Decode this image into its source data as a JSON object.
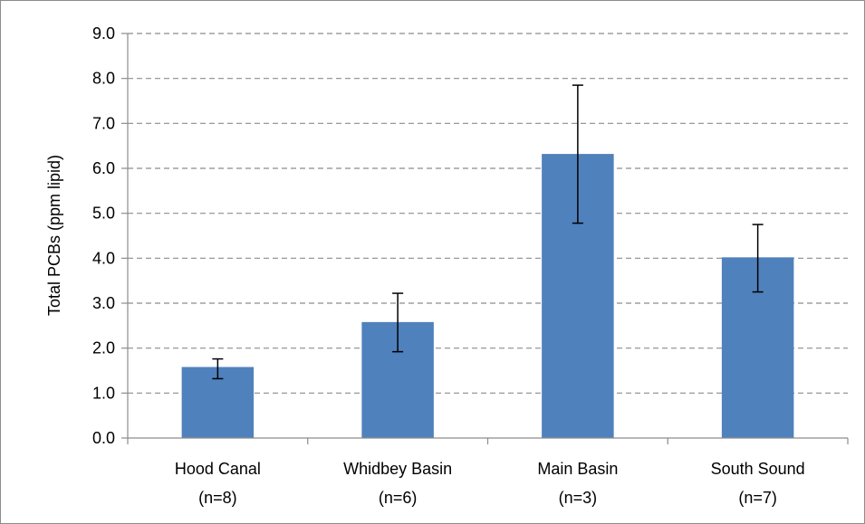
{
  "chart_data": {
    "type": "bar",
    "title": "",
    "xlabel": "",
    "ylabel": "Total PCBs (ppm lipid)",
    "ylim": [
      0,
      9
    ],
    "yticks": [
      "0.0",
      "1.0",
      "2.0",
      "3.0",
      "4.0",
      "5.0",
      "6.0",
      "7.0",
      "8.0",
      "9.0"
    ],
    "grid": "horizontal-dashed",
    "legend": "none",
    "bar_color": "#4f81bd",
    "categories": [
      {
        "line1": "Hood Canal",
        "line2": "(n=8)"
      },
      {
        "line1": "Whidbey Basin",
        "line2": "(n=6)"
      },
      {
        "line1": "Main Basin",
        "line2": "(n=3)"
      },
      {
        "line1": "South Sound",
        "line2": "(n=7)"
      }
    ],
    "values": [
      1.58,
      2.58,
      6.32,
      4.02
    ],
    "error_bars": [
      {
        "low": 1.32,
        "high": 1.76
      },
      {
        "low": 1.92,
        "high": 3.22
      },
      {
        "low": 4.78,
        "high": 7.85
      },
      {
        "low": 3.25,
        "high": 4.75
      }
    ]
  }
}
